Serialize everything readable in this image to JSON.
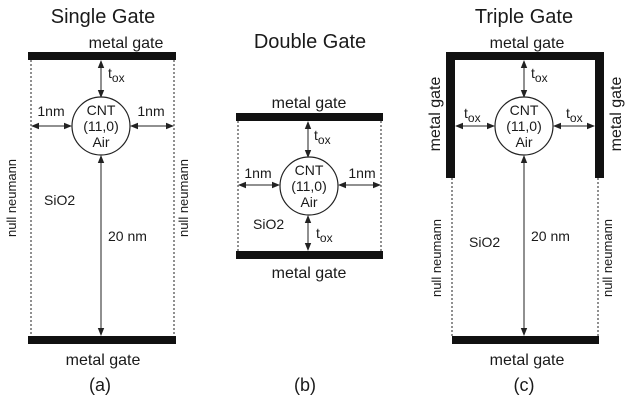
{
  "panels": {
    "a": {
      "title": "Single Gate",
      "gate_top": "metal gate",
      "gate_bottom": "metal gate",
      "tox": "t",
      "tox_sub": "ox",
      "spacing_left": "1nm",
      "spacing_right": "1nm",
      "cnt_line1": "CNT",
      "cnt_line2": "(11,0)",
      "cnt_line3": "Air",
      "oxide": "SiO2",
      "height": "20 nm",
      "boundary_left": "null neumann",
      "boundary_right": "null neumann",
      "caption": "(a)"
    },
    "b": {
      "title": "Double Gate",
      "gate_top": "metal gate",
      "gate_bottom": "metal gate",
      "tox_top": "t",
      "tox_top_sub": "ox",
      "tox_bottom": "t",
      "tox_bottom_sub": "ox",
      "spacing_left": "1nm",
      "spacing_right": "1nm",
      "cnt_line1": "CNT",
      "cnt_line2": "(11,0)",
      "cnt_line3": "Air",
      "oxide": "SiO2",
      "caption": "(b)"
    },
    "c": {
      "title": "Triple Gate",
      "gate_top": "metal gate",
      "gate_left": "metal gate",
      "gate_right": "metal gate",
      "gate_bottom": "metal gate",
      "tox_top": "t",
      "tox_top_sub": "ox",
      "tox_left": "t",
      "tox_left_sub": "ox",
      "tox_right": "t",
      "tox_right_sub": "ox",
      "cnt_line1": "CNT",
      "cnt_line2": "(11,0)",
      "cnt_line3": "Air",
      "oxide": "SiO2",
      "height": "20 nm",
      "boundary_left": "null neumann",
      "boundary_right": "null neumann",
      "caption": "(c)"
    }
  }
}
